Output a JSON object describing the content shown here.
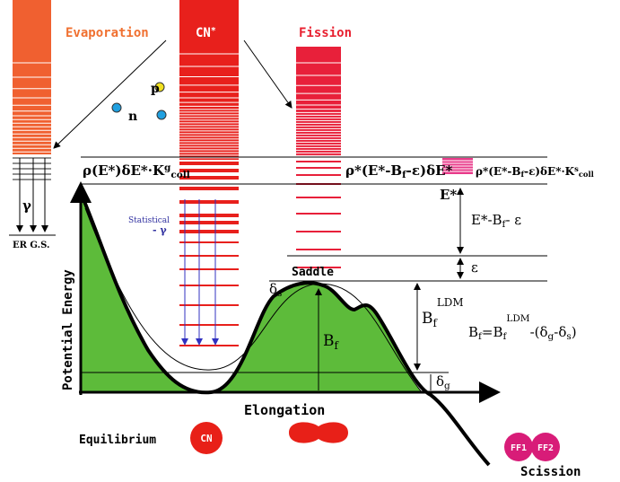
{
  "labels": {
    "evaporation": "Evaporation",
    "cn_star": [
      "CN",
      "*"
    ],
    "fission": "Fission",
    "proton": "p",
    "neutron": "n",
    "gamma": "γ",
    "er_gs": "ER G.S.",
    "statistical": "Statistical",
    "statistical_gamma": "- γ",
    "saddle": "Saddle",
    "potential_energy": "Potential Energy",
    "elongation": "Elongation",
    "equilibrium": "Equilibrium",
    "cn": "CN",
    "ff1": "FF1",
    "ff2": "FF2",
    "scission": "Scission"
  },
  "formulas": {
    "rho_ground": [
      "ρ(E*)δE*·K",
      "g",
      "coll"
    ],
    "rho_saddle": [
      "ρ*(E*-B",
      "f",
      "-ε)δE*"
    ],
    "rho_right": [
      "ρ*(E*-B",
      "f",
      "-ε)δE*·K",
      "s",
      "coll"
    ],
    "e_star": "E*",
    "e_minus": [
      "E*-B",
      "f",
      "- ε"
    ],
    "epsilon": "ε",
    "delta_s": [
      "δ",
      "s"
    ],
    "bf_ldm": [
      "B",
      "f",
      "LDM"
    ],
    "bf": [
      "B",
      "f"
    ],
    "bf_formula": [
      "B",
      "f",
      "=B",
      "f",
      "LDM",
      "-(δ",
      "g",
      "-δ",
      "s",
      ")"
    ],
    "delta_g": [
      "δ",
      "g"
    ]
  }
}
